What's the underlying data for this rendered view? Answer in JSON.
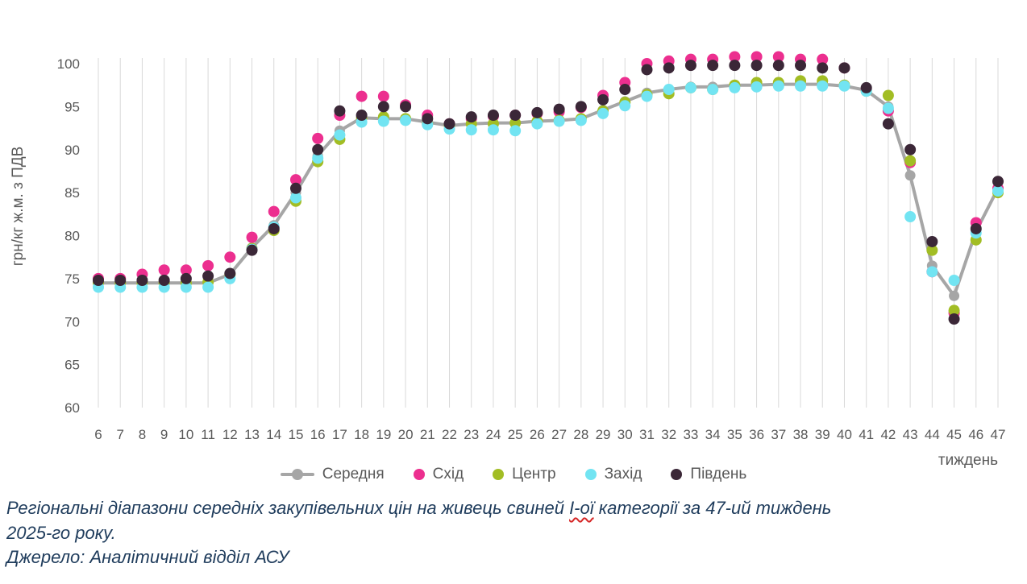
{
  "chart_data": {
    "type": "line",
    "x": [
      6,
      7,
      8,
      9,
      10,
      11,
      12,
      13,
      14,
      15,
      16,
      17,
      18,
      19,
      20,
      21,
      22,
      23,
      24,
      25,
      26,
      27,
      28,
      29,
      30,
      31,
      32,
      33,
      34,
      35,
      36,
      37,
      38,
      39,
      40,
      41,
      42,
      43,
      44,
      45,
      46,
      47
    ],
    "xlabel": "тиждень",
    "ylabel": "грн/кг ж.м. з ПДВ",
    "ylim": [
      60,
      100
    ],
    "yticks": [
      60,
      65,
      70,
      75,
      80,
      85,
      90,
      95,
      100
    ],
    "grid": "vertical",
    "legend_position": "bottom",
    "series": [
      {
        "name": "Середня",
        "color": "#a6a6a6",
        "style": "line-with-markers",
        "values": [
          74.5,
          74.5,
          74.5,
          74.5,
          74.5,
          74.5,
          75.5,
          78.6,
          81.2,
          85,
          89.3,
          92.2,
          93.7,
          93.6,
          93.6,
          93.2,
          92.8,
          93,
          93.1,
          93.1,
          93.3,
          93.4,
          93.6,
          94.6,
          95.6,
          96.6,
          97,
          97.3,
          97.3,
          97.5,
          97.5,
          97.6,
          97.6,
          97.6,
          97.4,
          96.9,
          95,
          87,
          76.5,
          73,
          80.5,
          85.5
        ]
      },
      {
        "name": "Схід",
        "color": "#ec2f8f",
        "style": "markers",
        "values": [
          75,
          75,
          75.5,
          76,
          76,
          76.5,
          77.5,
          79.8,
          82.8,
          86.5,
          91.3,
          94,
          96.2,
          96.2,
          95.2,
          94,
          93,
          93.6,
          93.9,
          94,
          94.2,
          94.4,
          94.9,
          96.3,
          97.8,
          100,
          100.3,
          100.5,
          100.5,
          100.8,
          100.8,
          100.8,
          100.5,
          100.5,
          99.5,
          97,
          94.5,
          88.5,
          75.8,
          71,
          81.5,
          85.5
        ]
      },
      {
        "name": "Центр",
        "color": "#a2bd24",
        "style": "markers",
        "values": [
          74.5,
          74.5,
          74.5,
          74.5,
          74.5,
          74.6,
          75.5,
          78.5,
          80.6,
          84,
          88.6,
          91.2,
          93.7,
          93.8,
          93.6,
          93,
          92.8,
          93,
          93,
          93.1,
          93.3,
          93.4,
          93.6,
          94.5,
          95.5,
          96.4,
          96.5,
          97.2,
          97,
          97.5,
          97.8,
          97.8,
          98,
          98,
          97.5,
          96.8,
          96.3,
          88.7,
          78.3,
          71.3,
          79.5,
          85
        ]
      },
      {
        "name": "Захід",
        "color": "#72e4f2",
        "style": "markers",
        "values": [
          74,
          74,
          74,
          74,
          74,
          74,
          75,
          78.4,
          81,
          84.4,
          89,
          91.7,
          93.2,
          93.3,
          93.4,
          92.9,
          92.4,
          92.3,
          92.3,
          92.2,
          93,
          93.3,
          93.4,
          94.2,
          95.1,
          96.2,
          97,
          97.2,
          97,
          97.2,
          97.3,
          97.4,
          97.4,
          97.4,
          97.4,
          96.8,
          94.8,
          82.2,
          75.8,
          74.8,
          80.3,
          85.2
        ]
      },
      {
        "name": "Південь",
        "color": "#3b2737",
        "style": "markers",
        "values": [
          74.8,
          74.8,
          74.8,
          74.8,
          75,
          75.3,
          75.6,
          78.3,
          80.8,
          85.5,
          90,
          94.5,
          94,
          95,
          95,
          93.6,
          93,
          93.8,
          94,
          94,
          94.3,
          94.7,
          95,
          95.8,
          97,
          99.3,
          99.5,
          99.8,
          99.8,
          99.8,
          99.8,
          99.8,
          99.8,
          99.5,
          99.5,
          97.2,
          93,
          90,
          79.3,
          70.3,
          80.8,
          86.3
        ]
      }
    ]
  },
  "caption": {
    "pre": "Регіональні діапазони середніх закупівельних цін на живець свиней ",
    "misspelled": "І-ої",
    "post": " категорії за 47-ий тиждень",
    "line2": "2025-го року."
  },
  "source": "Джерело: Аналітичний відділ АСУ"
}
